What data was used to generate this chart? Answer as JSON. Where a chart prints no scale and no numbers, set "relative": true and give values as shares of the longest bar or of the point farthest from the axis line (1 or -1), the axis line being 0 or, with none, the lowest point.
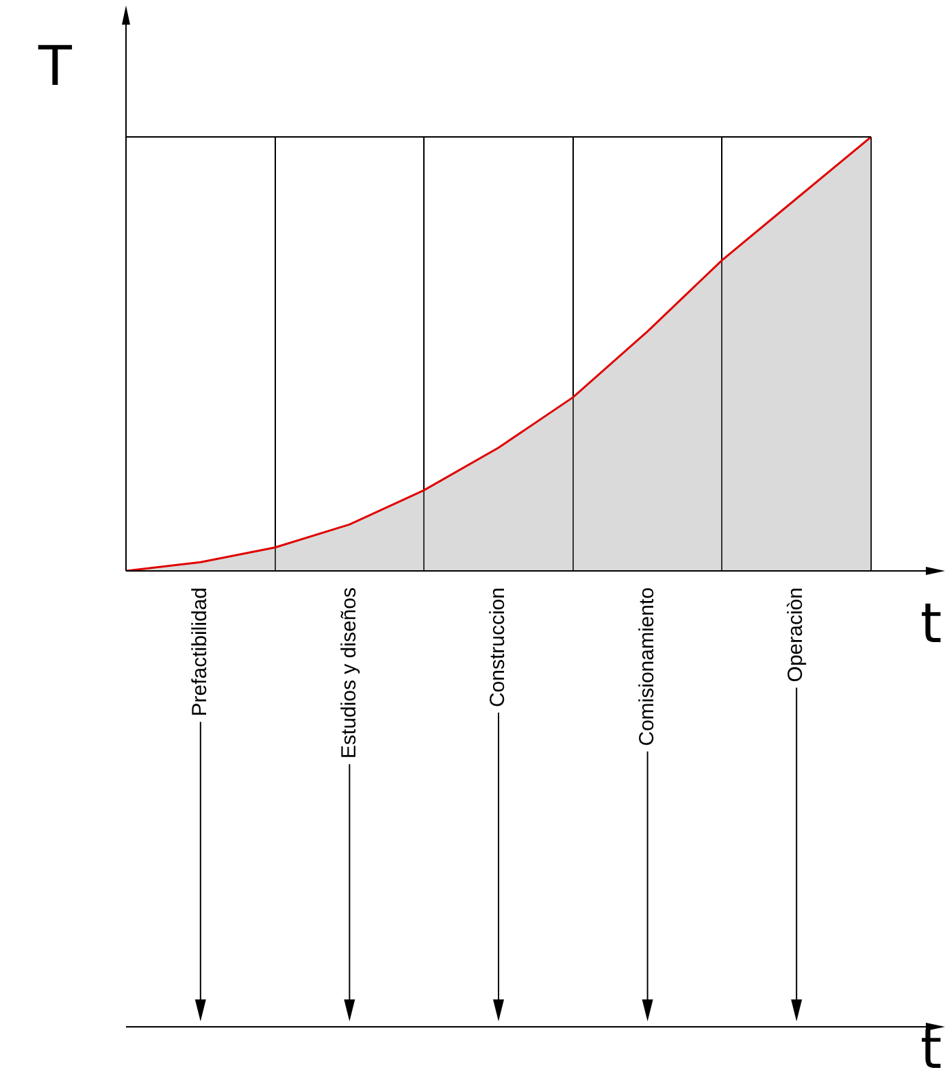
{
  "chart_data": {
    "type": "area",
    "relative": true,
    "ylabel": "T",
    "xlabel": "t",
    "categories": [
      null,
      "Prefactibilidad",
      null,
      "Estudios y diseños",
      null,
      "Construccion",
      null,
      "Comisionamiento",
      null,
      "Operaciòn",
      null
    ],
    "series": [
      {
        "color": "#e00000",
        "values": [
          0,
          0.02,
          0.054,
          0.107,
          0.186,
          0.284,
          0.4,
          0.552,
          0.716,
          0.858,
          1
        ]
      }
    ],
    "grid": "x",
    "annotations": [
      "t"
    ]
  }
}
